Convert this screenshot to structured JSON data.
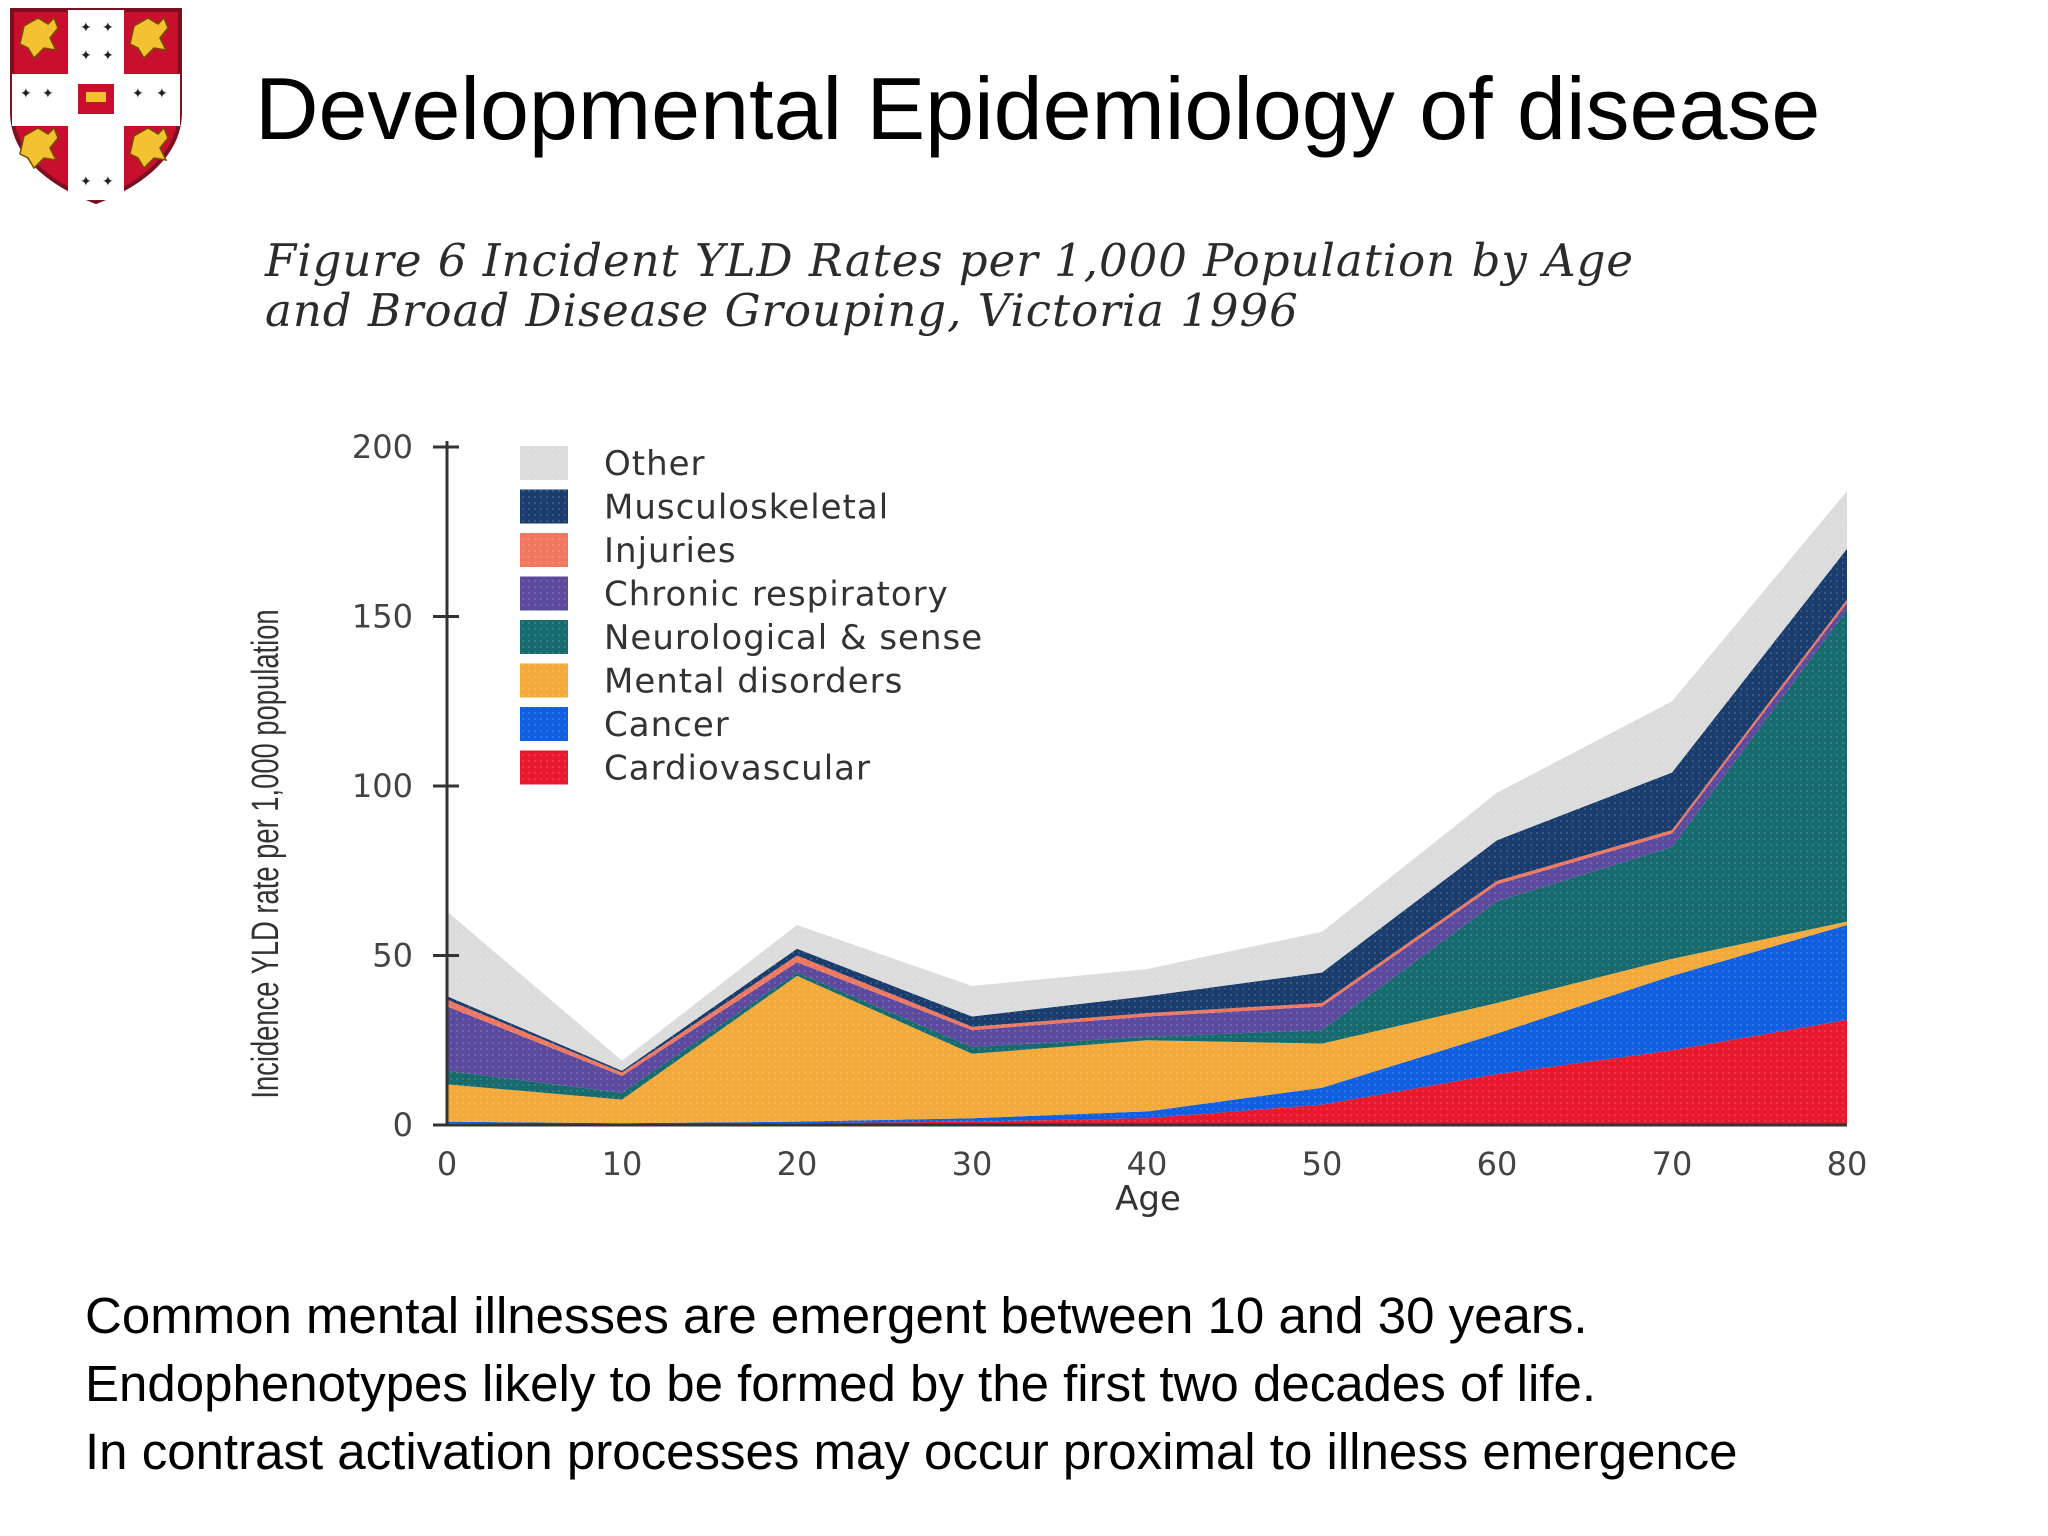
{
  "slide": {
    "title": "Developmental Epidemiology of disease",
    "notes": [
      "Common mental  illnesses are emergent between 10 and 30 years.",
      "Endophenotypes likely to  be formed  by the first two decades of life.",
      "In contrast activation processes may occur proximal to  illness emergence"
    ]
  },
  "colors": {
    "Other": "#dcdcdc",
    "Musculoskeletal": "#1a3d6e",
    "Injuries": "#f07860",
    "Chronic respiratory": "#5c4a9e",
    "Neurological & sense": "#176b6e",
    "Mental disorders": "#f4aa3a",
    "Cancer": "#0f5fe0",
    "Cardiovascular": "#e8192c"
  },
  "chart_data": {
    "type": "area",
    "stacked": true,
    "title": "Figure 6 Incident YLD Rates per 1,000 Population by Age and Broad Disease Grouping, Victoria 1996",
    "title_lines": [
      "Figure 6 Incident YLD Rates per 1,000 Population by Age",
      "and Broad Disease Grouping, Victoria 1996"
    ],
    "xlabel": "Age",
    "ylabel": "Incidence YLD rate per 1,000 population",
    "x": [
      0,
      10,
      20,
      30,
      40,
      50,
      60,
      70,
      80
    ],
    "xticks": [
      "0",
      "10",
      "20",
      "30",
      "40",
      "50",
      "60",
      "70",
      "80"
    ],
    "yticks": [
      "0",
      "50",
      "100",
      "150",
      "200"
    ],
    "xlim": [
      0,
      80
    ],
    "ylim": [
      0,
      200
    ],
    "legend_position": "top-left",
    "series": [
      {
        "name": "Cardiovascular",
        "values": [
          0.5,
          0.3,
          0.5,
          1,
          2,
          6,
          15,
          22,
          31
        ]
      },
      {
        "name": "Cancer",
        "values": [
          0.5,
          0.2,
          0.5,
          1,
          2,
          5,
          12,
          22,
          28
        ]
      },
      {
        "name": "Mental disorders",
        "values": [
          11,
          7,
          43,
          19,
          21,
          13,
          9,
          5,
          1
        ]
      },
      {
        "name": "Neurological & sense",
        "values": [
          4,
          2,
          1,
          2,
          1,
          4,
          30,
          33,
          92
        ]
      },
      {
        "name": "Chronic respiratory",
        "values": [
          19,
          5,
          3,
          5,
          6,
          7,
          5,
          4,
          2
        ]
      },
      {
        "name": "Injuries",
        "values": [
          2,
          1,
          2,
          1,
          1,
          1,
          1,
          1,
          1
        ]
      },
      {
        "name": "Musculoskeletal",
        "values": [
          1,
          0.5,
          2,
          3,
          5,
          9,
          12,
          17,
          15
        ]
      },
      {
        "name": "Other",
        "values": [
          25,
          3,
          7,
          9,
          8,
          12,
          14,
          21,
          17
        ]
      }
    ],
    "legend_order": [
      "Other",
      "Musculoskeletal",
      "Injuries",
      "Chronic respiratory",
      "Neurological & sense",
      "Mental disorders",
      "Cancer",
      "Cardiovascular"
    ]
  }
}
